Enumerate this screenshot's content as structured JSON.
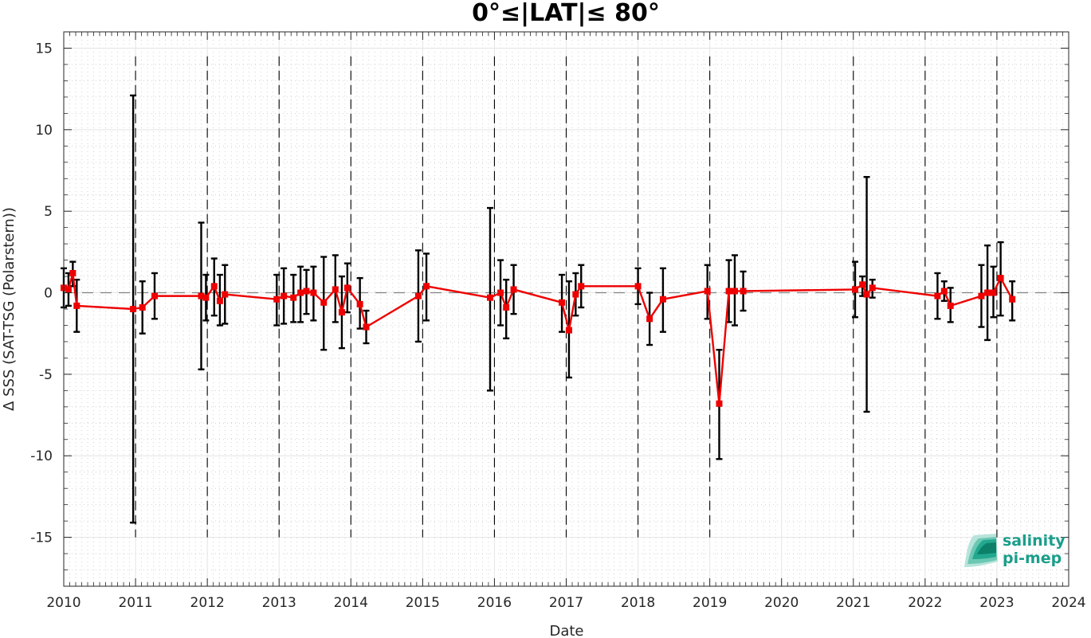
{
  "chart_data": {
    "type": "line",
    "title": "0°≤|LAT|≤ 80°",
    "xlabel": "Date",
    "ylabel": "Δ SSS (SAT-TSG (Polarstern))",
    "xlim": [
      "2010-01-01",
      "2024-01-01"
    ],
    "ylim": [
      -18,
      16
    ],
    "x_ticks": [
      "2010",
      "2011",
      "2012",
      "2013",
      "2014",
      "2015",
      "2016",
      "2017",
      "2018",
      "2019",
      "2020",
      "2021",
      "2022",
      "2023",
      "2024"
    ],
    "y_ticks": [
      {
        "value": 15,
        "label": "15"
      },
      {
        "value": 10,
        "label": "10"
      },
      {
        "value": 5,
        "label": "5"
      },
      {
        "value": 0,
        "label": "0"
      },
      {
        "value": -5,
        "label": "-5"
      },
      {
        "value": -10,
        "label": "-10"
      },
      {
        "value": -15,
        "label": "-15"
      }
    ],
    "grid": true,
    "zero_line": {
      "y": 0,
      "style": "dashed",
      "color": "#808080"
    },
    "year_markers": [
      "2011-01-01",
      "2012-01-01",
      "2013-01-01",
      "2014-01-01",
      "2015-01-01",
      "2016-01-01",
      "2017-01-01",
      "2018-01-01",
      "2019-01-01",
      "2021-01-01",
      "2022-01-01",
      "2023-01-01"
    ],
    "series_color": "#ee0000",
    "errorbar_color": "#000000",
    "points": [
      {
        "x": "2010-01-01",
        "y": 0.3,
        "err_low": -0.9,
        "err_high": 1.5
      },
      {
        "x": "2010-01-25",
        "y": 0.2,
        "err_low": -0.8,
        "err_high": 1.2
      },
      {
        "x": "2010-02-16",
        "y": 1.2,
        "err_low": 0.4,
        "err_high": 1.9
      },
      {
        "x": "2010-03-08",
        "y": -0.8,
        "err_low": -2.4,
        "err_high": 0.8
      },
      {
        "x": "2010-12-20",
        "y": -1.0,
        "err_low": -14.1,
        "err_high": 12.1
      },
      {
        "x": "2011-02-05",
        "y": -0.9,
        "err_low": -2.5,
        "err_high": 0.7
      },
      {
        "x": "2011-04-08",
        "y": -0.2,
        "err_low": -1.6,
        "err_high": 1.2
      },
      {
        "x": "2011-12-01",
        "y": -0.2,
        "err_low": -4.7,
        "err_high": 4.3
      },
      {
        "x": "2011-12-25",
        "y": -0.3,
        "err_low": -1.7,
        "err_high": 1.1
      },
      {
        "x": "2012-02-05",
        "y": 0.4,
        "err_low": -1.4,
        "err_high": 2.1
      },
      {
        "x": "2012-03-05",
        "y": -0.5,
        "err_low": -2.0,
        "err_high": 1.1
      },
      {
        "x": "2012-03-31",
        "y": -0.1,
        "err_low": -1.9,
        "err_high": 1.7
      },
      {
        "x": "2012-12-20",
        "y": -0.4,
        "err_low": -2.0,
        "err_high": 1.1
      },
      {
        "x": "2013-01-25",
        "y": -0.2,
        "err_low": -1.9,
        "err_high": 1.5
      },
      {
        "x": "2013-03-15",
        "y": -0.3,
        "err_low": -1.8,
        "err_high": 1.1
      },
      {
        "x": "2013-04-20",
        "y": 0.0,
        "err_low": -1.8,
        "err_high": 1.6
      },
      {
        "x": "2013-05-20",
        "y": 0.1,
        "err_low": -1.3,
        "err_high": 1.4
      },
      {
        "x": "2013-06-25",
        "y": 0.0,
        "err_low": -1.7,
        "err_high": 1.6
      },
      {
        "x": "2013-08-16",
        "y": -0.6,
        "err_low": -3.5,
        "err_high": 2.2
      },
      {
        "x": "2013-10-14",
        "y": 0.2,
        "err_low": -1.8,
        "err_high": 2.3
      },
      {
        "x": "2013-11-16",
        "y": -1.2,
        "err_low": -3.4,
        "err_high": 1.0
      },
      {
        "x": "2013-12-14",
        "y": 0.3,
        "err_low": -1.2,
        "err_high": 1.8
      },
      {
        "x": "2014-02-16",
        "y": -0.7,
        "err_low": -2.2,
        "err_high": 0.9
      },
      {
        "x": "2014-03-20",
        "y": -2.1,
        "err_low": -3.1,
        "err_high": -1.1
      },
      {
        "x": "2014-12-10",
        "y": -0.2,
        "err_low": -3.0,
        "err_high": 2.6
      },
      {
        "x": "2015-01-20",
        "y": 0.4,
        "err_low": -1.7,
        "err_high": 2.4
      },
      {
        "x": "2015-12-10",
        "y": -0.3,
        "err_low": -6.0,
        "err_high": 5.2
      },
      {
        "x": "2016-02-01",
        "y": 0.0,
        "err_low": -2.0,
        "err_high": 2.0
      },
      {
        "x": "2016-03-01",
        "y": -0.9,
        "err_low": -2.8,
        "err_high": 0.8
      },
      {
        "x": "2016-04-08",
        "y": 0.2,
        "err_low": -1.3,
        "err_high": 1.7
      },
      {
        "x": "2016-12-10",
        "y": -0.6,
        "err_low": -2.4,
        "err_high": 1.1
      },
      {
        "x": "2017-01-15",
        "y": -2.3,
        "err_low": -5.2,
        "err_high": 0.7
      },
      {
        "x": "2017-02-18",
        "y": -0.1,
        "err_low": -1.4,
        "err_high": 1.2
      },
      {
        "x": "2017-03-18",
        "y": 0.4,
        "err_low": -0.9,
        "err_high": 1.7
      },
      {
        "x": "2018-01-01",
        "y": 0.4,
        "err_low": -0.7,
        "err_high": 1.5
      },
      {
        "x": "2018-03-01",
        "y": -1.6,
        "err_low": -3.2,
        "err_high": 0.0
      },
      {
        "x": "2018-05-08",
        "y": -0.4,
        "err_low": -2.4,
        "err_high": 1.5
      },
      {
        "x": "2018-12-20",
        "y": 0.1,
        "err_low": -1.6,
        "err_high": 1.7
      },
      {
        "x": "2019-02-18",
        "y": -6.8,
        "err_low": -10.2,
        "err_high": -3.5
      },
      {
        "x": "2019-04-08",
        "y": 0.1,
        "err_low": -1.8,
        "err_high": 2.0
      },
      {
        "x": "2019-05-08",
        "y": 0.1,
        "err_low": -2.0,
        "err_high": 2.3
      },
      {
        "x": "2019-06-20",
        "y": 0.1,
        "err_low": -1.1,
        "err_high": 1.3
      },
      {
        "x": "2021-01-10",
        "y": 0.2,
        "err_low": -1.5,
        "err_high": 1.9
      },
      {
        "x": "2021-02-16",
        "y": 0.5,
        "err_low": -0.2,
        "err_high": 1.0
      },
      {
        "x": "2021-03-10",
        "y": -0.1,
        "err_low": -7.3,
        "err_high": 7.1
      },
      {
        "x": "2021-04-08",
        "y": 0.3,
        "err_low": -0.3,
        "err_high": 0.8
      },
      {
        "x": "2022-03-05",
        "y": -0.2,
        "err_low": -1.6,
        "err_high": 1.2
      },
      {
        "x": "2022-04-08",
        "y": 0.1,
        "err_low": -0.5,
        "err_high": 0.7
      },
      {
        "x": "2022-05-10",
        "y": -0.8,
        "err_low": -1.8,
        "err_high": 0.3
      },
      {
        "x": "2022-10-14",
        "y": -0.2,
        "err_low": -2.1,
        "err_high": 1.7
      },
      {
        "x": "2022-11-14",
        "y": 0.0,
        "err_low": -2.9,
        "err_high": 2.9
      },
      {
        "x": "2022-12-14",
        "y": 0.0,
        "err_low": -1.5,
        "err_high": 1.6
      },
      {
        "x": "2023-01-20",
        "y": 0.9,
        "err_low": -1.4,
        "err_high": 3.1
      },
      {
        "x": "2023-03-20",
        "y": -0.4,
        "err_low": -1.7,
        "err_high": 0.7
      }
    ]
  },
  "logo": {
    "line1": "salinity",
    "line2": "pi-mep",
    "color": "#1a9e8a"
  }
}
